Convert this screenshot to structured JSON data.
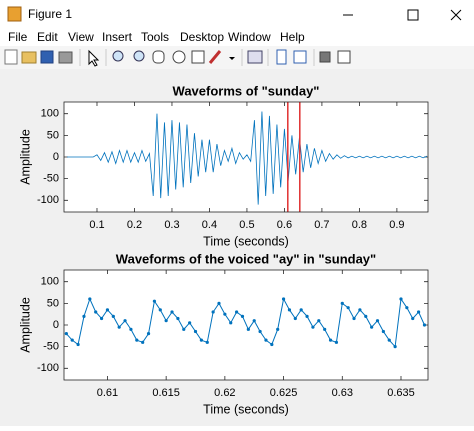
{
  "window": {
    "title": "Figure 1",
    "menu": [
      "File",
      "Edit",
      "View",
      "Insert",
      "Tools",
      "Desktop",
      "Window",
      "Help"
    ]
  },
  "chart_data": [
    {
      "type": "line",
      "title": "Waveforms of \"sunday\"",
      "x_label": "Time (seconds)",
      "y_label": "Amplitude",
      "xlim": [
        0.012,
        0.983
      ],
      "ylim": [
        -127,
        127
      ],
      "xticks": [
        0.1,
        0.2,
        0.3,
        0.4,
        0.5,
        0.6,
        0.7,
        0.8,
        0.9
      ],
      "yticks": [
        -100,
        -50,
        0,
        50,
        100
      ],
      "grid": false,
      "marker": false,
      "vlines": [
        {
          "value": 0.609,
          "color": "#e03030"
        },
        {
          "value": 0.641,
          "color": "#e03030"
        }
      ],
      "series": [
        {
          "color": "#0072bd",
          "x": [
            0.02,
            0.03,
            0.04,
            0.05,
            0.06,
            0.07,
            0.08,
            0.09,
            0.1,
            0.11,
            0.12,
            0.13,
            0.14,
            0.15,
            0.16,
            0.17,
            0.18,
            0.19,
            0.2,
            0.21,
            0.22,
            0.23,
            0.24,
            0.25,
            0.26,
            0.27,
            0.28,
            0.29,
            0.3,
            0.31,
            0.32,
            0.33,
            0.34,
            0.35,
            0.36,
            0.37,
            0.38,
            0.39,
            0.4,
            0.41,
            0.42,
            0.43,
            0.44,
            0.45,
            0.46,
            0.47,
            0.48,
            0.49,
            0.5,
            0.51,
            0.52,
            0.53,
            0.54,
            0.55,
            0.56,
            0.57,
            0.58,
            0.59,
            0.6,
            0.61,
            0.62,
            0.63,
            0.64,
            0.65,
            0.66,
            0.67,
            0.68,
            0.69,
            0.7,
            0.71,
            0.72,
            0.73,
            0.74,
            0.75,
            0.76,
            0.77,
            0.78,
            0.79,
            0.8,
            0.81,
            0.82,
            0.83,
            0.84,
            0.85,
            0.86,
            0.87,
            0.88,
            0.89,
            0.9,
            0.91,
            0.92,
            0.93,
            0.94,
            0.95,
            0.96,
            0.97,
            0.98
          ],
          "values": [
            0,
            0,
            0,
            0,
            0,
            0,
            0,
            0,
            5,
            -8,
            10,
            -12,
            12,
            -15,
            15,
            -12,
            15,
            -12,
            10,
            -12,
            15,
            -10,
            8,
            -90,
            100,
            -95,
            80,
            -90,
            85,
            -75,
            80,
            -70,
            75,
            -60,
            55,
            -45,
            40,
            -35,
            40,
            -35,
            30,
            -20,
            15,
            -10,
            20,
            -15,
            10,
            -5,
            5,
            -10,
            85,
            -110,
            105,
            -90,
            95,
            -85,
            75,
            -70,
            65,
            -55,
            50,
            -40,
            45,
            -35,
            30,
            -25,
            20,
            -15,
            15,
            -10,
            8,
            -5,
            5,
            -3,
            3,
            -2,
            2,
            -2,
            2,
            -2,
            2,
            -2,
            2,
            -2,
            2,
            -2,
            2,
            -2,
            2,
            -2,
            2,
            -2,
            2,
            -2,
            2,
            -2,
            2
          ]
        }
      ]
    },
    {
      "type": "line",
      "title": "Waveforms of the voiced \"ay\" in \"sunday\"",
      "x_label": "Time (seconds)",
      "y_label": "Amplitude",
      "xlim": [
        0.6063,
        0.6373
      ],
      "ylim": [
        -127,
        127
      ],
      "xticks": [
        0.61,
        0.615,
        0.62,
        0.625,
        0.63,
        0.635
      ],
      "yticks": [
        -100,
        -50,
        0,
        50,
        100
      ],
      "grid": false,
      "marker": true,
      "series": [
        {
          "color": "#0072bd",
          "x": [
            0.6065,
            0.607,
            0.6075,
            0.608,
            0.6085,
            0.609,
            0.6095,
            0.61,
            0.6105,
            0.611,
            0.6115,
            0.612,
            0.6125,
            0.613,
            0.6135,
            0.614,
            0.6145,
            0.615,
            0.6155,
            0.616,
            0.6165,
            0.617,
            0.6175,
            0.618,
            0.6185,
            0.619,
            0.6195,
            0.62,
            0.6205,
            0.621,
            0.6215,
            0.622,
            0.6225,
            0.623,
            0.6235,
            0.624,
            0.6245,
            0.625,
            0.6255,
            0.626,
            0.6265,
            0.627,
            0.6275,
            0.628,
            0.6285,
            0.629,
            0.6295,
            0.63,
            0.6305,
            0.631,
            0.6315,
            0.632,
            0.6325,
            0.633,
            0.6335,
            0.634,
            0.6345,
            0.635,
            0.6355,
            0.636,
            0.6365,
            0.637
          ],
          "values": [
            -20,
            -35,
            -45,
            20,
            60,
            30,
            15,
            35,
            20,
            -5,
            10,
            -10,
            -35,
            -40,
            -20,
            55,
            35,
            10,
            30,
            15,
            -10,
            5,
            -15,
            -35,
            -40,
            30,
            50,
            25,
            5,
            30,
            20,
            -10,
            10,
            -15,
            -35,
            -45,
            -10,
            60,
            35,
            15,
            35,
            20,
            -5,
            10,
            -10,
            -35,
            -40,
            50,
            40,
            15,
            35,
            20,
            -5,
            10,
            -15,
            -35,
            -50,
            60,
            40,
            15,
            30,
            0
          ]
        }
      ]
    }
  ]
}
